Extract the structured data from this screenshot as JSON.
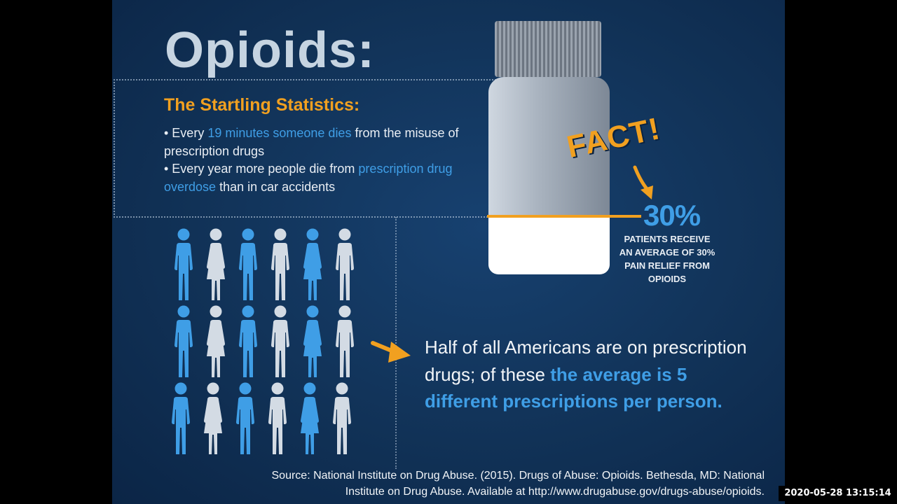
{
  "slide": {
    "title": "Opioids:",
    "subtitle": "The Startling Statistics:",
    "bullet1": {
      "pre": "• Every ",
      "highlight": "19 minutes someone dies",
      "post": " from the misuse of prescription drugs"
    },
    "bullet2": {
      "pre": "• Every year more people die from ",
      "highlight": "prescription drug overdose",
      "post": " than in car accidents"
    },
    "fact_label": "FACT!",
    "percent": "30%",
    "percent_caption": "PATIENTS RECEIVE AN AVERAGE OF 30% PAIN RELIEF FROM OPIOIDS",
    "half_text": {
      "pre": "Half of all Americans are on prescription drugs; of these ",
      "highlight": "the average is 5 different prescriptions per person."
    },
    "people_pattern": [
      "man-blue",
      "woman-grey",
      "man-blue",
      "man-grey",
      "woman-blue",
      "man-grey"
    ],
    "colors": {
      "accent_orange": "#f1a020",
      "accent_blue": "#3f9ee6",
      "person_grey": "#d3dbe4",
      "background": "#113257"
    }
  },
  "source": {
    "line1": "Source: National Institute on Drug Abuse. (2015). Drugs of Abuse: Opioids. Bethesda, MD: National",
    "line2": "Institute on Drug Abuse. Available at http://www.drugabuse.gov/drugs-abuse/opioids."
  },
  "timestamp": "2020-05-28 13:15:14"
}
